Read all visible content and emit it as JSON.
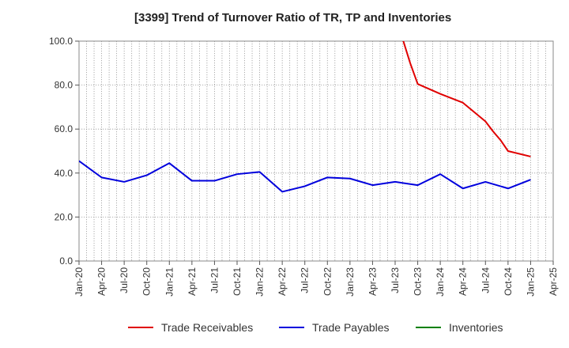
{
  "chart_data": {
    "type": "line",
    "title": "[3399]  Trend of Turnover Ratio of TR, TP and Inventories",
    "xlabel": "",
    "ylabel": "",
    "ylim": [
      0,
      100
    ],
    "yticks": [
      "0.0",
      "20.0",
      "40.0",
      "60.0",
      "80.0",
      "100.0"
    ],
    "ytick_values": [
      0,
      20,
      40,
      60,
      80,
      100
    ],
    "xticks": [
      "Jan-20",
      "Apr-20",
      "Jul-20",
      "Oct-20",
      "Jan-21",
      "Apr-21",
      "Jul-21",
      "Oct-21",
      "Jan-22",
      "Apr-22",
      "Jul-22",
      "Oct-22",
      "Jan-23",
      "Apr-23",
      "Jul-23",
      "Oct-23",
      "Jan-24",
      "Apr-24",
      "Jul-24",
      "Oct-24",
      "Jan-25",
      "Apr-25"
    ],
    "grid": true,
    "legend_position": "bottom",
    "series": [
      {
        "name": "Trade Receivables",
        "color": "#e00000",
        "x": [
          "Jul-23",
          "Aug-23",
          "Sep-23",
          "Oct-23",
          "Jan-24",
          "Apr-24",
          "Jul-24",
          "Aug-24",
          "Sep-24",
          "Oct-24",
          "Jan-25"
        ],
        "values": [
          104.0,
          101.0,
          90.0,
          80.5,
          76.0,
          72.0,
          63.5,
          59.0,
          55.0,
          50.0,
          47.5
        ]
      },
      {
        "name": "Trade Payables",
        "color": "#0000dd",
        "x": [
          "Jan-20",
          "Apr-20",
          "Jul-20",
          "Oct-20",
          "Jan-21",
          "Apr-21",
          "Jul-21",
          "Oct-21",
          "Jan-22",
          "Apr-22",
          "Jul-22",
          "Oct-22",
          "Jan-23",
          "Apr-23",
          "Jul-23",
          "Oct-23",
          "Jan-24",
          "Apr-24",
          "Jul-24",
          "Oct-24",
          "Jan-25"
        ],
        "values": [
          45.5,
          38.0,
          36.0,
          39.0,
          44.5,
          36.5,
          36.5,
          39.5,
          40.5,
          31.5,
          34.0,
          38.0,
          37.5,
          34.5,
          36.0,
          34.5,
          39.5,
          33.0,
          36.0,
          33.0,
          37.0
        ]
      },
      {
        "name": "Inventories",
        "color": "#008000",
        "x": [],
        "values": []
      }
    ]
  }
}
